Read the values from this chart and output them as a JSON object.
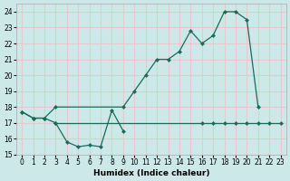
{
  "xlabel": "Humidex (Indice chaleur)",
  "bg_color": "#cce8e8",
  "grid_color": "#e8c8c8",
  "line_color": "#1a6b5a",
  "xlim": [
    -0.5,
    23.5
  ],
  "ylim": [
    15,
    24.5
  ],
  "yticks": [
    15,
    16,
    17,
    18,
    19,
    20,
    21,
    22,
    23,
    24
  ],
  "xticks": [
    0,
    1,
    2,
    3,
    4,
    5,
    6,
    7,
    8,
    9,
    10,
    11,
    12,
    13,
    14,
    15,
    16,
    17,
    18,
    19,
    20,
    21,
    22,
    23
  ],
  "curve_dip_x": [
    0,
    1,
    2,
    3,
    4,
    5,
    6,
    7,
    8,
    9
  ],
  "curve_dip_y": [
    17.7,
    17.3,
    17.3,
    17.0,
    15.8,
    15.5,
    15.6,
    15.5,
    17.8,
    16.5
  ],
  "curve_rise_x": [
    0,
    1,
    2,
    3,
    9,
    10,
    11,
    12,
    13,
    14,
    15,
    16,
    17,
    18,
    19,
    20,
    21
  ],
  "curve_rise_y": [
    17.7,
    17.3,
    17.3,
    18.0,
    18.0,
    19.0,
    20.0,
    21.0,
    21.0,
    21.5,
    22.8,
    22.0,
    22.5,
    24.0,
    24.0,
    23.5,
    18.0
  ],
  "curve_flat_x": [
    3,
    16,
    17,
    18,
    19,
    20,
    21,
    22,
    23
  ],
  "curve_flat_y": [
    17.0,
    17.0,
    17.0,
    17.0,
    17.0,
    17.0,
    17.0,
    17.0,
    17.0
  ]
}
